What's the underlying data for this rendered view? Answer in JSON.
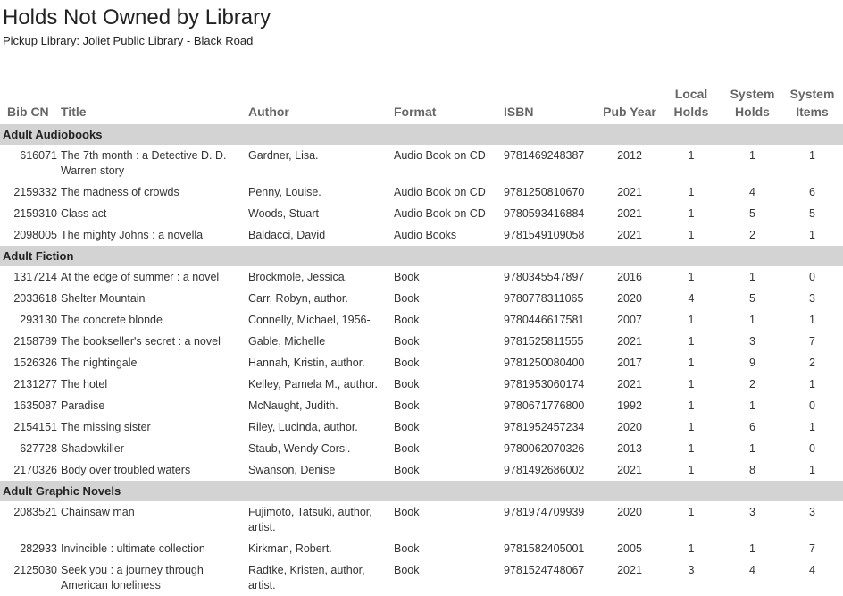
{
  "header": {
    "title": "Holds Not Owned by Library",
    "subtitle": "Pickup Library: Joliet Public Library - Black Road"
  },
  "columns": {
    "bib": "Bib CN",
    "title": "Title",
    "author": "Author",
    "format": "Format",
    "isbn": "ISBN",
    "pub_year": "Pub Year",
    "local_holds_1": "Local",
    "local_holds_2": "Holds",
    "system_holds_1": "System",
    "system_holds_2": "Holds",
    "system_items_1": "System",
    "system_items_2": "Items"
  },
  "colors": {
    "group_bg": "#d3d3d3",
    "header_text": "#666666"
  },
  "groups": [
    {
      "name": "Adult Audiobooks",
      "rows": [
        {
          "bib": "616071",
          "title": "The 7th month : a Detective D. D. Warren story",
          "author": "Gardner, Lisa.",
          "format": "Audio Book on CD",
          "isbn": "9781469248387",
          "year": "2012",
          "local": "1",
          "sys_holds": "1",
          "sys_items": "1"
        },
        {
          "bib": "2159332",
          "title": "The madness of crowds",
          "author": "Penny, Louise.",
          "format": "Audio Book on CD",
          "isbn": "9781250810670",
          "year": "2021",
          "local": "1",
          "sys_holds": "4",
          "sys_items": "6"
        },
        {
          "bib": "2159310",
          "title": "Class act",
          "author": "Woods, Stuart",
          "format": "Audio Book on CD",
          "isbn": "9780593416884",
          "year": "2021",
          "local": "1",
          "sys_holds": "5",
          "sys_items": "5"
        },
        {
          "bib": "2098005",
          "title": "The mighty Johns : a novella",
          "author": "Baldacci, David",
          "format": "Audio Books",
          "isbn": "9781549109058",
          "year": "2021",
          "local": "1",
          "sys_holds": "2",
          "sys_items": "1"
        }
      ]
    },
    {
      "name": "Adult Fiction",
      "rows": [
        {
          "bib": "1317214",
          "title": "At the edge of summer : a novel",
          "author": "Brockmole, Jessica.",
          "format": "Book",
          "isbn": "9780345547897",
          "year": "2016",
          "local": "1",
          "sys_holds": "1",
          "sys_items": "0"
        },
        {
          "bib": "2033618",
          "title": "Shelter Mountain",
          "author": "Carr, Robyn, author.",
          "format": "Book",
          "isbn": "9780778311065",
          "year": "2020",
          "local": "4",
          "sys_holds": "5",
          "sys_items": "3"
        },
        {
          "bib": "293130",
          "title": "The concrete blonde",
          "author": "Connelly, Michael, 1956-",
          "format": "Book",
          "isbn": "9780446617581",
          "year": "2007",
          "local": "1",
          "sys_holds": "1",
          "sys_items": "1"
        },
        {
          "bib": "2158789",
          "title": "The bookseller's secret : a novel",
          "author": "Gable, Michelle",
          "format": "Book",
          "isbn": "9781525811555",
          "year": "2021",
          "local": "1",
          "sys_holds": "3",
          "sys_items": "7"
        },
        {
          "bib": "1526326",
          "title": "The nightingale",
          "author": "Hannah, Kristin, author.",
          "format": "Book",
          "isbn": "9781250080400",
          "year": "2017",
          "local": "1",
          "sys_holds": "9",
          "sys_items": "2"
        },
        {
          "bib": "2131277",
          "title": "The hotel",
          "author": "Kelley, Pamela M., author.",
          "format": "Book",
          "isbn": "9781953060174",
          "year": "2021",
          "local": "1",
          "sys_holds": "2",
          "sys_items": "1"
        },
        {
          "bib": "1635087",
          "title": "Paradise",
          "author": "McNaught, Judith.",
          "format": "Book",
          "isbn": "9780671776800",
          "year": "1992",
          "local": "1",
          "sys_holds": "1",
          "sys_items": "0"
        },
        {
          "bib": "2154151",
          "title": "The missing sister",
          "author": "Riley, Lucinda, author.",
          "format": "Book",
          "isbn": "9781952457234",
          "year": "2020",
          "local": "1",
          "sys_holds": "6",
          "sys_items": "1"
        },
        {
          "bib": "627728",
          "title": "Shadowkiller",
          "author": "Staub, Wendy Corsi.",
          "format": "Book",
          "isbn": "9780062070326",
          "year": "2013",
          "local": "1",
          "sys_holds": "1",
          "sys_items": "0"
        },
        {
          "bib": "2170326",
          "title": "Body over troubled waters",
          "author": "Swanson, Denise",
          "format": "Book",
          "isbn": "9781492686002",
          "year": "2021",
          "local": "1",
          "sys_holds": "8",
          "sys_items": "1"
        }
      ]
    },
    {
      "name": "Adult Graphic Novels",
      "rows": [
        {
          "bib": "2083521",
          "title": "Chainsaw man",
          "author": "Fujimoto, Tatsuki, author, artist.",
          "format": "Book",
          "isbn": "9781974709939",
          "year": "2020",
          "local": "1",
          "sys_holds": "3",
          "sys_items": "3"
        },
        {
          "bib": "282933",
          "title": "Invincible : ultimate collection",
          "author": "Kirkman, Robert.",
          "format": "Book",
          "isbn": "9781582405001",
          "year": "2005",
          "local": "1",
          "sys_holds": "1",
          "sys_items": "7"
        },
        {
          "bib": "2125030",
          "title": "Seek you : a journey through American loneliness",
          "author": "Radtke, Kristen, author, artist.",
          "format": "Book",
          "isbn": "9781524748067",
          "year": "2021",
          "local": "3",
          "sys_holds": "4",
          "sys_items": "4"
        }
      ]
    }
  ]
}
